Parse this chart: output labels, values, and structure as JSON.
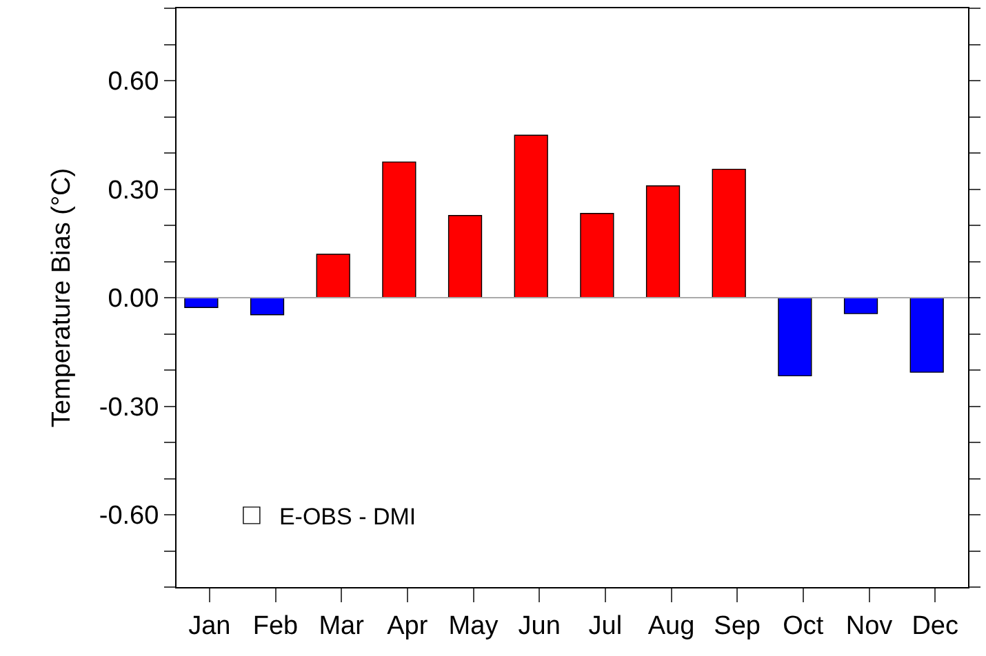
{
  "chart_data": {
    "type": "bar",
    "ylabel": "Temperature Bias (°C)",
    "categories": [
      "Jan",
      "Feb",
      "Mar",
      "Apr",
      "May",
      "Jun",
      "Jul",
      "Aug",
      "Sep",
      "Oct",
      "Nov",
      "Dec"
    ],
    "series": [
      {
        "name": "E-OBS - DMI",
        "colors": [
          "#0000ff",
          "#0000ff",
          "#ff0000",
          "#ff0000",
          "#ff0000",
          "#ff0000",
          "#ff0000",
          "#ff0000",
          "#ff0000",
          "#0000ff",
          "#0000ff",
          "#0000ff"
        ],
        "values": [
          -0.027,
          -0.047,
          0.12,
          0.375,
          0.227,
          0.449,
          0.233,
          0.309,
          0.355,
          -0.216,
          -0.044,
          -0.206
        ]
      }
    ],
    "ylim": [
      -0.8,
      0.8
    ],
    "yticks": [
      {
        "value": -0.8,
        "label": null
      },
      {
        "value": -0.7,
        "label": null
      },
      {
        "value": -0.6,
        "label": "-0.60"
      },
      {
        "value": -0.5,
        "label": null
      },
      {
        "value": -0.4,
        "label": null
      },
      {
        "value": -0.3,
        "label": "-0.30"
      },
      {
        "value": -0.2,
        "label": null
      },
      {
        "value": -0.1,
        "label": null
      },
      {
        "value": 0,
        "label": "0.00"
      },
      {
        "value": 0.1,
        "label": null
      },
      {
        "value": 0.2,
        "label": null
      },
      {
        "value": 0.3,
        "label": "0.30"
      },
      {
        "value": 0.4,
        "label": null
      },
      {
        "value": 0.5,
        "label": null
      },
      {
        "value": 0.6,
        "label": "0.60"
      },
      {
        "value": 0.7,
        "label": null
      },
      {
        "value": 0.8,
        "label": null
      }
    ],
    "ref_lines": [
      {
        "axis": "y",
        "value": 0,
        "color": "#aaaaaa"
      }
    ],
    "legend": "bottom left"
  }
}
